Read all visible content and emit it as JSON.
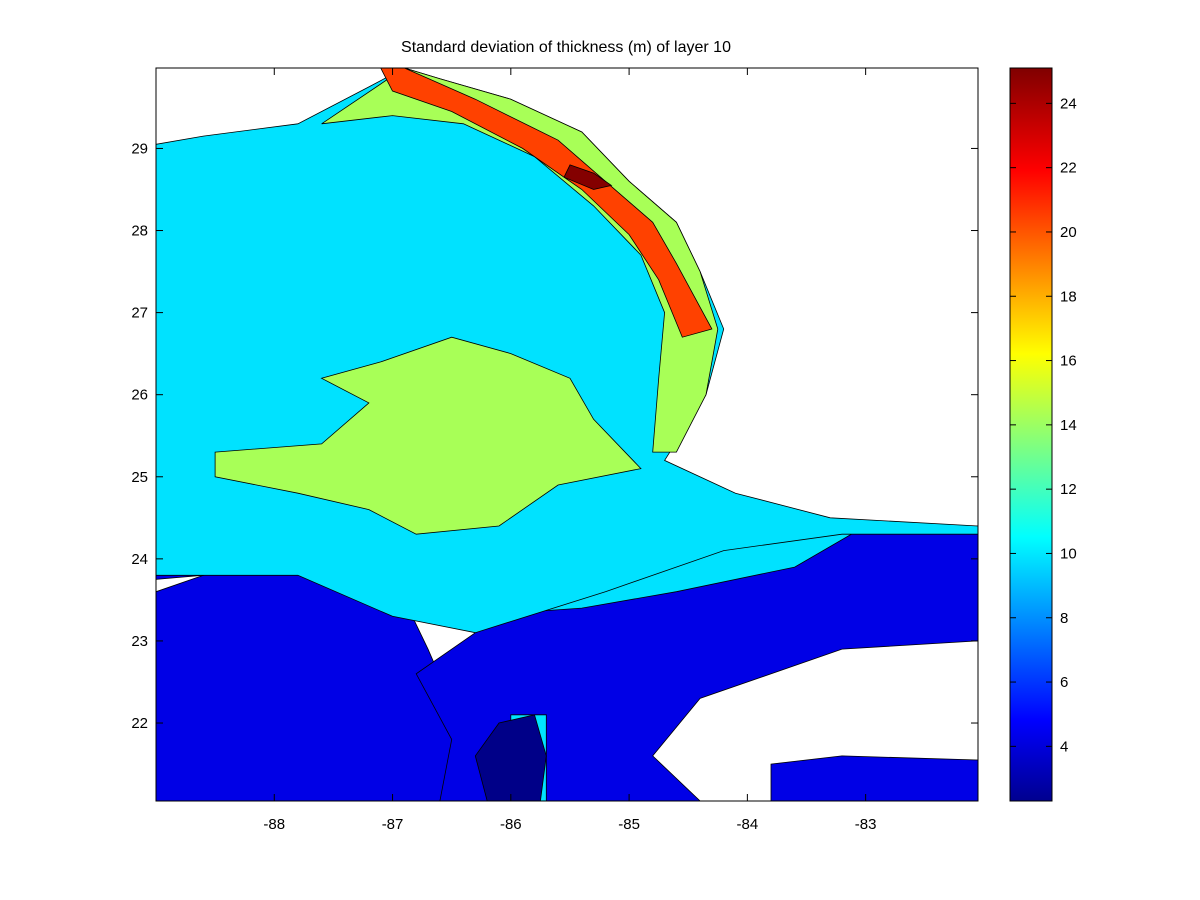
{
  "chart_data": {
    "type": "heatmap",
    "title": "Standard deviation of  thickness (m)  of layer 10",
    "xlabel": "",
    "ylabel": "",
    "xlim": [
      -89,
      -82.05
    ],
    "ylim": [
      21.05,
      29.98
    ],
    "x_ticks": [
      -88,
      -87,
      -86,
      -85,
      -84,
      -83
    ],
    "x_tick_labels": [
      "-88",
      "-87",
      "-86",
      "-85",
      "-84",
      "-83"
    ],
    "y_ticks": [
      22,
      23,
      24,
      25,
      26,
      27,
      28,
      29
    ],
    "y_tick_labels": [
      "22",
      "23",
      "24",
      "25",
      "26",
      "27",
      "28",
      "29"
    ],
    "colorbar": {
      "colormap": "jet",
      "range": [
        2.3,
        25.1
      ],
      "ticks": [
        4,
        6,
        8,
        10,
        12,
        14,
        16,
        18,
        20,
        22,
        24
      ],
      "tick_labels": [
        "4",
        "6",
        "8",
        "10",
        "12",
        "14",
        "16",
        "18",
        "20",
        "22",
        "24"
      ]
    },
    "grid": false,
    "legend": "none",
    "regions": [
      {
        "name": "western-shelf-low",
        "value": 4.6,
        "points": [
          [
            -89,
            21.05
          ],
          [
            -86.6,
            21.05
          ],
          [
            -86.4,
            21.9
          ],
          [
            -86.7,
            22.9
          ],
          [
            -86.9,
            23.5
          ],
          [
            -87.7,
            23.8
          ],
          [
            -88.4,
            23.9
          ],
          [
            -89,
            23.6
          ]
        ]
      },
      {
        "name": "south-channel-low",
        "value": 4.6,
        "points": [
          [
            -86.6,
            21.05
          ],
          [
            -84.4,
            21.05
          ],
          [
            -84.8,
            21.6
          ],
          [
            -84.4,
            22.3
          ],
          [
            -83.2,
            22.9
          ],
          [
            -82.05,
            23.0
          ],
          [
            -82.05,
            24.4
          ],
          [
            -83.2,
            24.3
          ],
          [
            -84.2,
            24.1
          ],
          [
            -85.2,
            23.7
          ],
          [
            -86.2,
            23.2
          ],
          [
            -86.8,
            22.6
          ],
          [
            -86.5,
            21.8
          ]
        ]
      },
      {
        "name": "southeast-strip-low",
        "value": 4.6,
        "points": [
          [
            -83.8,
            21.05
          ],
          [
            -82.05,
            21.05
          ],
          [
            -82.05,
            21.55
          ],
          [
            -83.2,
            21.6
          ],
          [
            -83.8,
            21.5
          ]
        ]
      },
      {
        "name": "northwest-low",
        "value": 4.6,
        "points": [
          [
            -89,
            26.9
          ],
          [
            -88.1,
            27.2
          ],
          [
            -87.8,
            28.2
          ],
          [
            -88.4,
            28.6
          ],
          [
            -89,
            28.7
          ]
        ]
      },
      {
        "name": "west-coast-low",
        "value": 4.6,
        "points": [
          [
            -89,
            24.3
          ],
          [
            -88.2,
            24.5
          ],
          [
            -87.6,
            24.2
          ],
          [
            -87.4,
            23.9
          ],
          [
            -88.2,
            23.85
          ],
          [
            -89,
            23.75
          ]
        ]
      },
      {
        "name": "central-low-a",
        "value": 4.6,
        "points": [
          [
            -85.2,
            24.6
          ],
          [
            -84.7,
            24.5
          ],
          [
            -84.5,
            23.9
          ],
          [
            -84.9,
            23.7
          ],
          [
            -85.4,
            23.9
          ]
        ]
      },
      {
        "name": "central-low-b",
        "value": 4.6,
        "points": [
          [
            -85.9,
            27.8
          ],
          [
            -85.5,
            27.9
          ],
          [
            -85.2,
            27.6
          ],
          [
            -85.5,
            27.3
          ],
          [
            -85.9,
            27.5
          ]
        ]
      },
      {
        "name": "mid-shelf-low",
        "value": 10.2,
        "points": [
          [
            -89,
            23.9
          ],
          [
            -88.1,
            24.0
          ],
          [
            -86.9,
            23.6
          ],
          [
            -86.4,
            23.3
          ],
          [
            -85.4,
            23.4
          ],
          [
            -84.6,
            23.6
          ],
          [
            -83.6,
            23.9
          ],
          [
            -83.0,
            24.4
          ],
          [
            -84.0,
            24.6
          ],
          [
            -84.9,
            24.5
          ],
          [
            -86.0,
            24.5
          ],
          [
            -87.5,
            24.4
          ],
          [
            -89,
            24.5
          ]
        ]
      },
      {
        "name": "main-basin-mid",
        "value": 10.2,
        "points": [
          [
            -89,
            24.4
          ],
          [
            -89,
            29.05
          ],
          [
            -88.6,
            29.15
          ],
          [
            -87.8,
            29.3
          ],
          [
            -87.2,
            29.75
          ],
          [
            -86.9,
            29.98
          ],
          [
            -86.6,
            29.85
          ],
          [
            -86.0,
            29.6
          ],
          [
            -85.4,
            29.2
          ],
          [
            -85.0,
            28.6
          ],
          [
            -84.6,
            28.1
          ],
          [
            -84.4,
            27.5
          ],
          [
            -84.2,
            26.8
          ],
          [
            -84.35,
            26.0
          ],
          [
            -84.7,
            25.2
          ],
          [
            -84.1,
            24.8
          ],
          [
            -83.3,
            24.5
          ],
          [
            -82.05,
            24.4
          ],
          [
            -82.05,
            24.3
          ],
          [
            -83.2,
            24.3
          ],
          [
            -84.2,
            24.1
          ],
          [
            -85.2,
            23.6
          ],
          [
            -86.3,
            23.1
          ],
          [
            -87.0,
            23.3
          ],
          [
            -87.8,
            23.8
          ],
          [
            -89,
            23.8
          ]
        ]
      },
      {
        "name": "south-channel-mid",
        "value": 10.2,
        "points": [
          [
            -86.0,
            21.05
          ],
          [
            -85.7,
            21.05
          ],
          [
            -85.7,
            22.1
          ],
          [
            -86.0,
            22.1
          ]
        ]
      },
      {
        "name": "central-plateau-high",
        "value": 14.6,
        "points": [
          [
            -88.5,
            25.3
          ],
          [
            -87.6,
            25.4
          ],
          [
            -87.2,
            25.9
          ],
          [
            -87.6,
            26.2
          ],
          [
            -87.1,
            26.4
          ],
          [
            -86.5,
            26.7
          ],
          [
            -86.0,
            26.5
          ],
          [
            -85.5,
            26.2
          ],
          [
            -85.3,
            25.7
          ],
          [
            -84.9,
            25.1
          ],
          [
            -85.6,
            24.9
          ],
          [
            -86.1,
            24.4
          ],
          [
            -86.8,
            24.3
          ],
          [
            -87.2,
            24.6
          ],
          [
            -87.8,
            24.8
          ],
          [
            -88.5,
            25.0
          ]
        ]
      },
      {
        "name": "coastal-band-high",
        "value": 14.6,
        "points": [
          [
            -87.6,
            29.3
          ],
          [
            -86.9,
            29.98
          ],
          [
            -86.6,
            29.85
          ],
          [
            -86.0,
            29.6
          ],
          [
            -85.4,
            29.2
          ],
          [
            -85.0,
            28.6
          ],
          [
            -84.6,
            28.1
          ],
          [
            -84.4,
            27.5
          ],
          [
            -84.25,
            26.8
          ],
          [
            -84.35,
            26.0
          ],
          [
            -84.6,
            25.3
          ],
          [
            -84.8,
            25.3
          ],
          [
            -84.75,
            26.2
          ],
          [
            -84.7,
            27.0
          ],
          [
            -84.9,
            27.7
          ],
          [
            -85.3,
            28.3
          ],
          [
            -85.8,
            28.9
          ],
          [
            -86.4,
            29.3
          ],
          [
            -87.0,
            29.4
          ]
        ]
      },
      {
        "name": "coastal-band-peak",
        "value": 20.8,
        "points": [
          [
            -87.1,
            29.98
          ],
          [
            -86.9,
            29.98
          ],
          [
            -86.3,
            29.6
          ],
          [
            -85.6,
            29.1
          ],
          [
            -85.2,
            28.6
          ],
          [
            -84.8,
            28.1
          ],
          [
            -84.6,
            27.6
          ],
          [
            -84.3,
            26.8
          ],
          [
            -84.55,
            26.7
          ],
          [
            -84.75,
            27.4
          ],
          [
            -85.0,
            27.95
          ],
          [
            -85.4,
            28.5
          ],
          [
            -85.9,
            29.0
          ],
          [
            -86.5,
            29.45
          ],
          [
            -87.0,
            29.7
          ]
        ]
      },
      {
        "name": "coastal-max",
        "value": 25.0,
        "points": [
          [
            -85.5,
            28.8
          ],
          [
            -85.3,
            28.7
          ],
          [
            -85.15,
            28.55
          ],
          [
            -85.3,
            28.5
          ],
          [
            -85.55,
            28.65
          ]
        ]
      },
      {
        "name": "deep-channel-min",
        "value": 2.5,
        "points": [
          [
            -86.2,
            21.05
          ],
          [
            -85.75,
            21.05
          ],
          [
            -85.7,
            21.6
          ],
          [
            -85.8,
            22.1
          ],
          [
            -86.1,
            22.0
          ],
          [
            -86.3,
            21.6
          ]
        ]
      }
    ]
  }
}
